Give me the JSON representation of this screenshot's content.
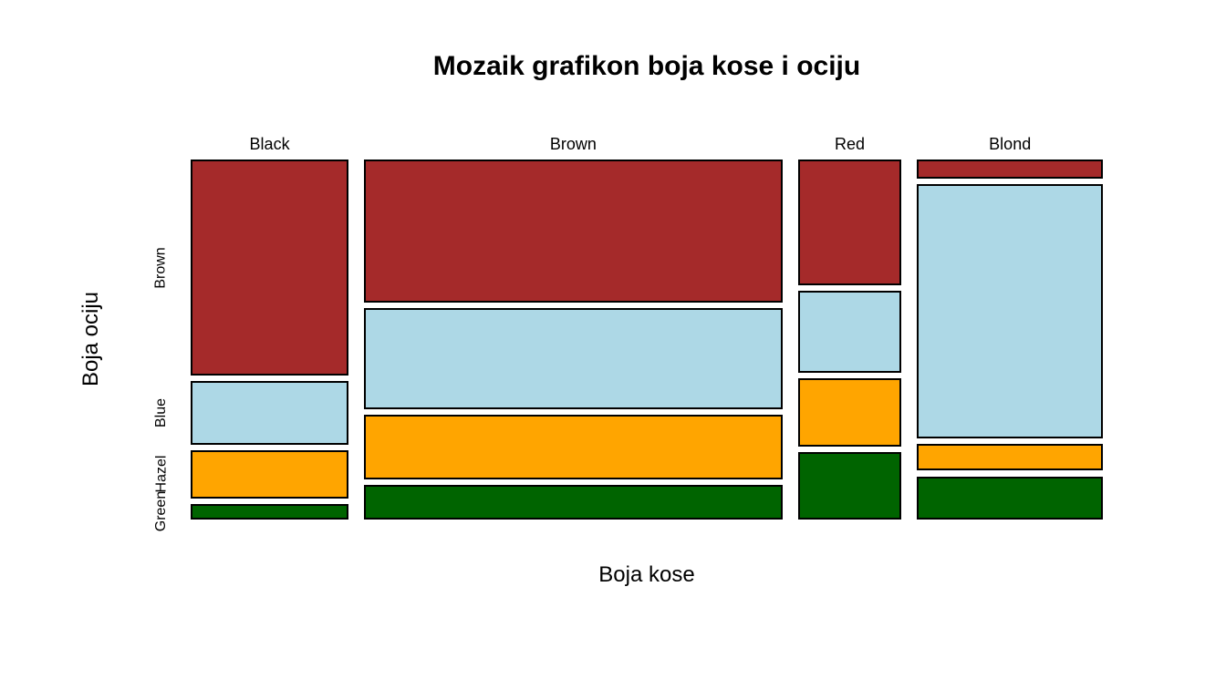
{
  "chart_data": {
    "type": "mosaic",
    "title": "Mozaik grafikon boja kose i ociju",
    "xlabel": "Boja kose",
    "ylabel": "Boja ociju",
    "x_categories": [
      "Black",
      "Brown",
      "Red",
      "Blond"
    ],
    "y_categories": [
      "Brown",
      "Blue",
      "Hazel",
      "Green"
    ],
    "counts": [
      [
        68,
        20,
        15,
        5
      ],
      [
        119,
        84,
        54,
        29
      ],
      [
        26,
        17,
        14,
        14
      ],
      [
        7,
        94,
        10,
        16
      ]
    ],
    "column_totals": [
      108,
      286,
      71,
      127
    ],
    "grand_total": 592,
    "colors": [
      "#A52A2A",
      "#ADD8E6",
      "#FFA500",
      "#006400"
    ],
    "border_color": "#000000",
    "background_color": "#FFFFFF",
    "legend": "none",
    "grid": false,
    "notes": "Mosaic plot: column widths proportional to hair-color totals; segment heights proportional to eye-color share within each hair color. Segments top-to-bottom: Brown, Blue, Hazel, Green."
  }
}
